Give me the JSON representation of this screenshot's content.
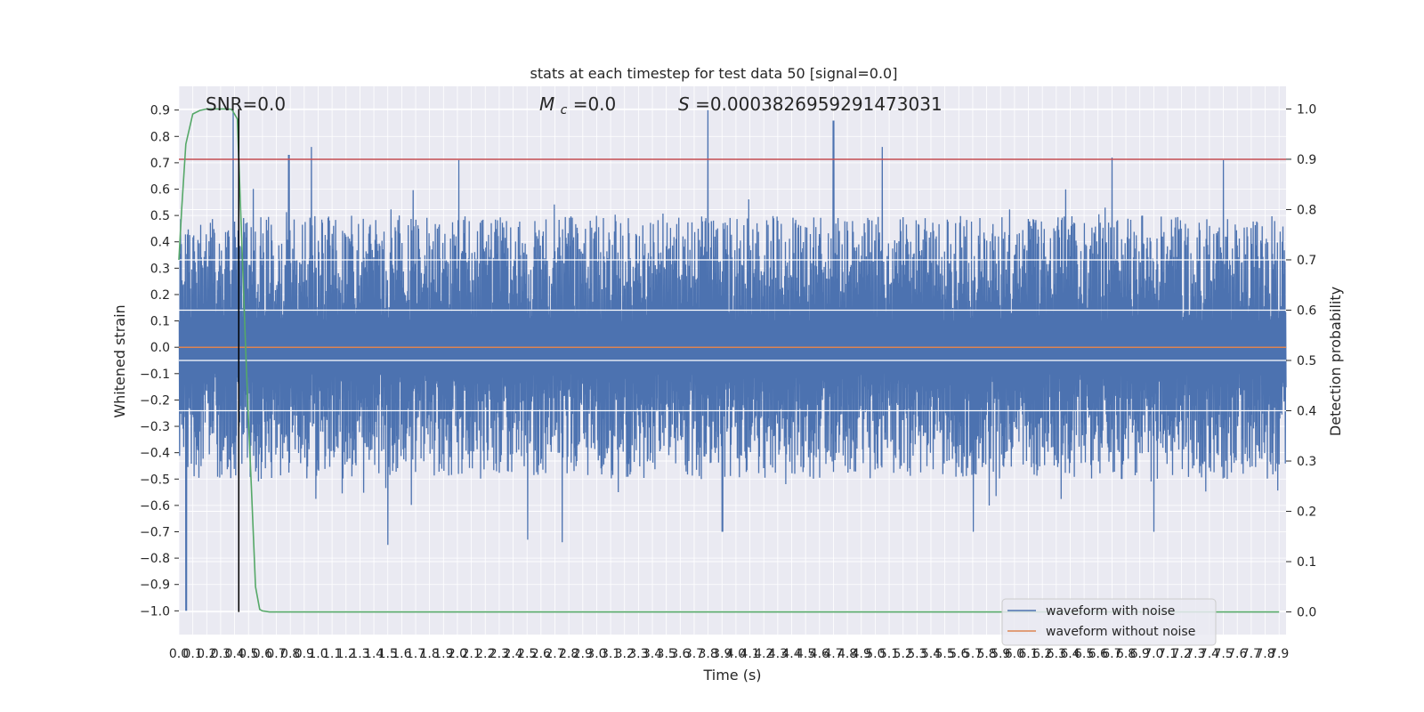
{
  "chart_data": {
    "type": "line",
    "title": "stats at each timestep for test data 50 [signal=0.0]",
    "xlabel": "Time (s)",
    "ylabel_left": "Whitened strain",
    "ylabel_right": "Detection probability",
    "xlim": [
      0.0,
      7.95
    ],
    "ylim_left": [
      -1.09,
      0.99
    ],
    "ylim_right": [
      -0.045,
      1.045
    ],
    "grid": true,
    "x_ticks": [
      "0.0",
      "0.1",
      "0.2",
      "0.3",
      "0.4",
      "0.5",
      "0.6",
      "0.7",
      "0.8",
      "0.9",
      "1.0",
      "1.1",
      "1.2",
      "1.3",
      "1.4",
      "1.5",
      "1.6",
      "1.7",
      "1.8",
      "1.9",
      "2.0",
      "2.1",
      "2.2",
      "2.3",
      "2.4",
      "2.5",
      "2.6",
      "2.7",
      "2.8",
      "2.9",
      "3.0",
      "3.1",
      "3.2",
      "3.3",
      "3.4",
      "3.5",
      "3.6",
      "3.7",
      "3.8",
      "3.9",
      "4.0",
      "4.1",
      "4.2",
      "4.3",
      "4.4",
      "4.5",
      "4.6",
      "4.7",
      "4.8",
      "4.9",
      "5.0",
      "5.1",
      "5.2",
      "5.3",
      "5.4",
      "5.5",
      "5.6",
      "5.7",
      "5.8",
      "5.9",
      "6.0",
      "6.1",
      "6.2",
      "6.3",
      "6.4",
      "6.5",
      "6.6",
      "6.7",
      "6.8",
      "6.9",
      "7.0",
      "7.1",
      "7.2",
      "7.3",
      "7.4",
      "7.5",
      "7.6",
      "7.7",
      "7.8",
      "7.9"
    ],
    "y_ticks_left": [
      "0.9",
      "0.8",
      "0.7",
      "0.6",
      "0.5",
      "0.4",
      "0.3",
      "0.2",
      "0.1",
      "0.0",
      "−0.1",
      "−0.2",
      "−0.3",
      "−0.4",
      "−0.5",
      "−0.6",
      "−0.7",
      "−0.8",
      "−0.9",
      "−1.0"
    ],
    "y_ticks_right": [
      "1.0",
      "0.9",
      "0.8",
      "0.7",
      "0.6",
      "0.5",
      "0.4",
      "0.3",
      "0.2",
      "0.1",
      "0.0"
    ],
    "annotations": {
      "snr": "SNR=0.0",
      "mc_symbol": "M",
      "mc_subscript": "c",
      "mc_value": "=0.0",
      "s_symbol": "S",
      "s_value": "=0.0003826959291473031"
    },
    "legend": {
      "location": "lower right",
      "entries": [
        "waveform with noise",
        "waveform without noise"
      ]
    },
    "threshold_right": 0.9,
    "marker_time_s": 0.43,
    "detection_probability": {
      "x": [
        0.0,
        0.02,
        0.05,
        0.1,
        0.15,
        0.2,
        0.25,
        0.3,
        0.35,
        0.38,
        0.42,
        0.43,
        0.45,
        0.48,
        0.5,
        0.52,
        0.55,
        0.58,
        0.6,
        0.65,
        7.9
      ],
      "y": [
        0.7,
        0.8,
        0.93,
        0.99,
        0.997,
        1.0,
        1.0,
        1.0,
        1.0,
        0.999,
        0.98,
        0.9,
        0.75,
        0.52,
        0.38,
        0.25,
        0.05,
        0.005,
        0.002,
        0.0,
        0.0
      ]
    },
    "waveform_without_noise": {
      "x": [
        0.0,
        7.95
      ],
      "y": [
        0.0,
        0.0
      ]
    },
    "waveform_with_noise": {
      "n_samples": 1600,
      "band_upper": [
        0.1,
        0.5
      ],
      "band_lower": [
        -0.5,
        -0.1
      ],
      "peaks": [
        {
          "x": 0.05,
          "y": -1.0
        },
        {
          "x": 0.39,
          "y": 0.9
        },
        {
          "x": 0.43,
          "y": 0.7
        },
        {
          "x": 0.79,
          "y": 0.73
        },
        {
          "x": 0.95,
          "y": 0.76
        },
        {
          "x": 1.5,
          "y": -0.75
        },
        {
          "x": 2.01,
          "y": 0.71
        },
        {
          "x": 2.5,
          "y": -0.73
        },
        {
          "x": 2.75,
          "y": -0.74
        },
        {
          "x": 3.8,
          "y": 0.9
        },
        {
          "x": 3.9,
          "y": -0.7
        },
        {
          "x": 4.7,
          "y": 0.86
        },
        {
          "x": 5.05,
          "y": 0.76
        },
        {
          "x": 5.7,
          "y": -0.7
        },
        {
          "x": 6.7,
          "y": 0.72
        },
        {
          "x": 7.0,
          "y": -0.7
        },
        {
          "x": 7.5,
          "y": 0.71
        }
      ]
    },
    "colors": {
      "background": "#eaeaf2",
      "grid": "#ffffff",
      "noise": "#4c72b0",
      "clean": "#dd8452",
      "probability": "#55a868",
      "threshold": "#c44e52",
      "marker": "#000000"
    }
  }
}
